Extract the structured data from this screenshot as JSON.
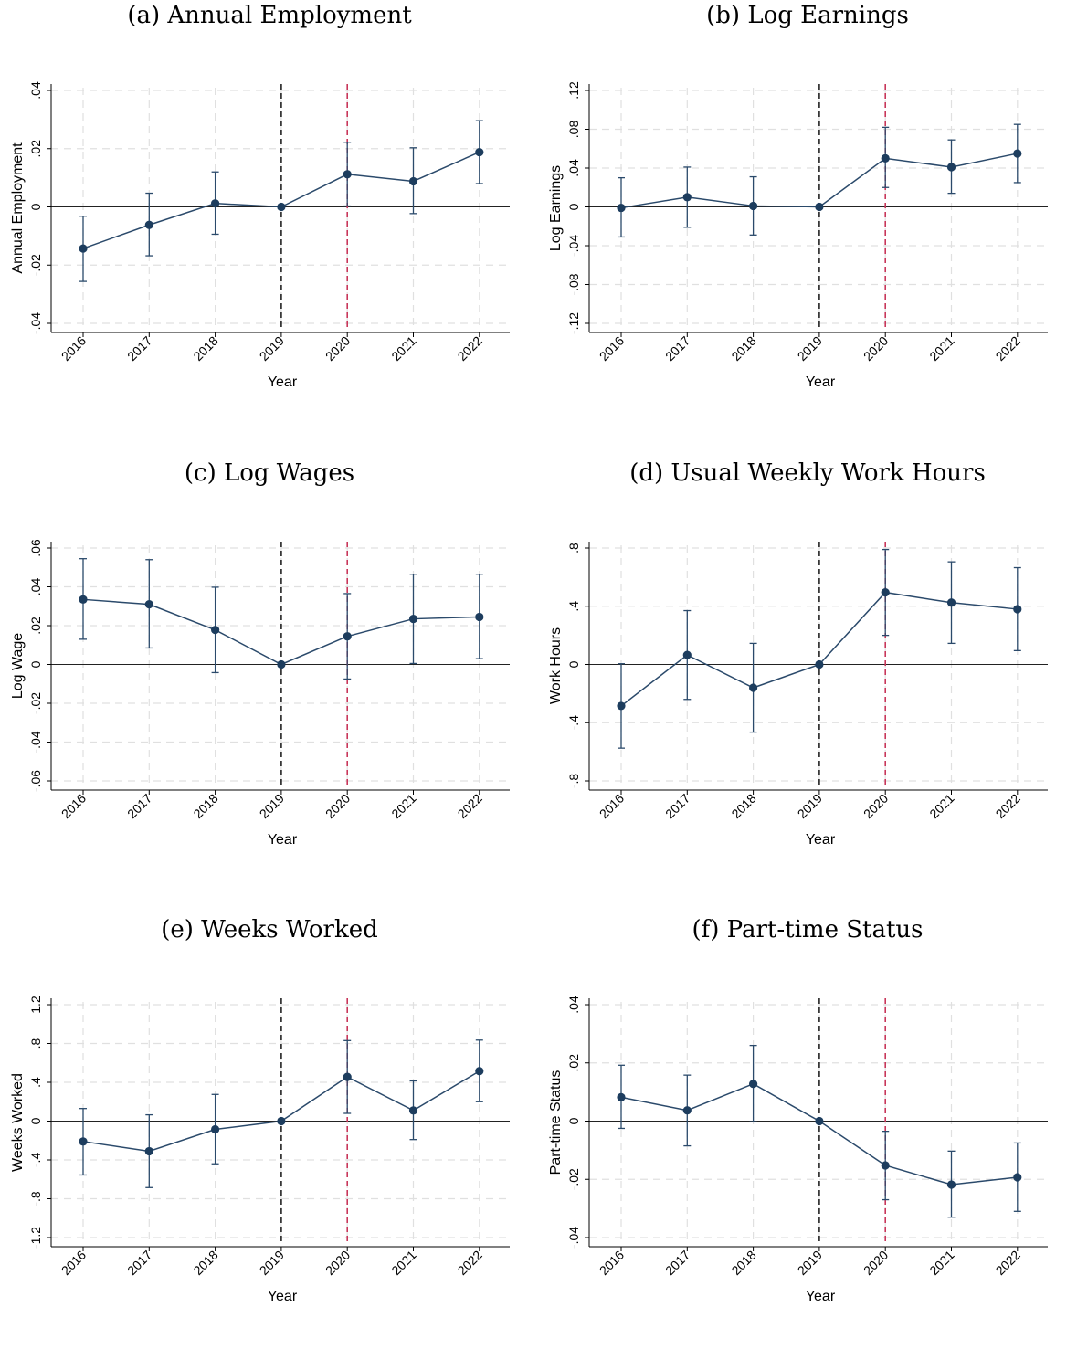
{
  "colors": {
    "series": "#1d3d5e",
    "reference_black": "#222222",
    "reference_red": "#c8375a"
  },
  "chart_data": [
    {
      "type": "line",
      "title": "(a) Annual Employment",
      "xlabel": "Year",
      "ylabel": "Annual Employment",
      "x": [
        "2016",
        "2017",
        "2018",
        "2019",
        "2020",
        "2021",
        "2022"
      ],
      "values": [
        -0.0143,
        -0.0062,
        0.0012,
        0.0,
        0.0112,
        0.0088,
        0.0188
      ],
      "ci_lower": [
        -0.0256,
        -0.0168,
        -0.0094,
        0.0,
        0.0003,
        -0.0023,
        0.008
      ],
      "ci_upper": [
        -0.0032,
        0.0047,
        0.012,
        0.0,
        0.0222,
        0.0203,
        0.0296
      ],
      "ylim": [
        -0.04,
        0.04
      ],
      "yticks": [
        -0.04,
        -0.02,
        0,
        0.02,
        0.04
      ],
      "ytick_labels": [
        "-.04",
        "-.02",
        "0",
        ".02",
        ".04"
      ],
      "reference_lines": [
        "2019",
        "2020"
      ],
      "grid": true
    },
    {
      "type": "line",
      "title": "(b) Log Earnings",
      "xlabel": "Year",
      "ylabel": "Log Earnings",
      "x": [
        "2016",
        "2017",
        "2018",
        "2019",
        "2020",
        "2021",
        "2022"
      ],
      "values": [
        -0.001,
        0.01,
        0.001,
        0.0,
        0.05,
        0.041,
        0.055
      ],
      "ci_lower": [
        -0.031,
        -0.021,
        -0.029,
        0.0,
        0.02,
        0.014,
        0.025
      ],
      "ci_upper": [
        0.03,
        0.041,
        0.031,
        0.0,
        0.082,
        0.069,
        0.085
      ],
      "ylim": [
        -0.12,
        0.12
      ],
      "yticks": [
        -0.12,
        -0.08,
        -0.04,
        0,
        0.04,
        0.08,
        0.12
      ],
      "ytick_labels": [
        "-.12",
        "-.08",
        "-.04",
        "0",
        ".04",
        ".08",
        ".12"
      ],
      "reference_lines": [
        "2019",
        "2020"
      ],
      "grid": true
    },
    {
      "type": "line",
      "title": "(c) Log Wages",
      "xlabel": "Year",
      "ylabel": "Log Wage",
      "x": [
        "2016",
        "2017",
        "2018",
        "2019",
        "2020",
        "2021",
        "2022"
      ],
      "values": [
        0.0335,
        0.031,
        0.0178,
        0.0,
        0.0145,
        0.0235,
        0.0245
      ],
      "ci_lower": [
        0.013,
        0.0085,
        -0.0042,
        0.0,
        -0.0075,
        0.0005,
        0.003
      ],
      "ci_upper": [
        0.0545,
        0.054,
        0.0398,
        0.0,
        0.0365,
        0.0465,
        0.0465
      ],
      "ylim": [
        -0.06,
        0.06
      ],
      "yticks": [
        -0.06,
        -0.04,
        -0.02,
        0,
        0.02,
        0.04,
        0.06
      ],
      "ytick_labels": [
        "-.06",
        "-.04",
        "-.02",
        "0",
        ".02",
        ".04",
        ".06"
      ],
      "reference_lines": [
        "2019",
        "2020"
      ],
      "grid": true
    },
    {
      "type": "line",
      "title": "(d) Usual Weekly Work Hours",
      "xlabel": "Year",
      "ylabel": "Work Hours",
      "x": [
        "2016",
        "2017",
        "2018",
        "2019",
        "2020",
        "2021",
        "2022"
      ],
      "values": [
        -0.285,
        0.065,
        -0.16,
        0.0,
        0.495,
        0.425,
        0.38
      ],
      "ci_lower": [
        -0.575,
        -0.24,
        -0.465,
        0.0,
        0.2,
        0.145,
        0.095
      ],
      "ci_upper": [
        0.005,
        0.37,
        0.145,
        0.0,
        0.79,
        0.705,
        0.665
      ],
      "ylim": [
        -0.8,
        0.8
      ],
      "yticks": [
        -0.8,
        -0.4,
        0,
        0.4,
        0.8
      ],
      "ytick_labels": [
        "-.8",
        "-.4",
        "0",
        ".4",
        ".8"
      ],
      "reference_lines": [
        "2019",
        "2020"
      ],
      "grid": true
    },
    {
      "type": "line",
      "title": "(e) Weeks Worked",
      "xlabel": "Year",
      "ylabel": "Weeks Worked",
      "x": [
        "2016",
        "2017",
        "2018",
        "2019",
        "2020",
        "2021",
        "2022"
      ],
      "values": [
        -0.21,
        -0.31,
        -0.085,
        0.0,
        0.455,
        0.11,
        0.515
      ],
      "ci_lower": [
        -0.555,
        -0.685,
        -0.44,
        0.0,
        0.08,
        -0.19,
        0.2
      ],
      "ci_upper": [
        0.13,
        0.065,
        0.275,
        0.0,
        0.83,
        0.415,
        0.835
      ],
      "ylim": [
        -1.2,
        1.2
      ],
      "yticks": [
        -1.2,
        -0.8,
        -0.4,
        0,
        0.4,
        0.8,
        1.2
      ],
      "ytick_labels": [
        "-1.2",
        "-.8",
        "-.4",
        "0",
        ".4",
        ".8",
        "1.2"
      ],
      "reference_lines": [
        "2019",
        "2020"
      ],
      "grid": true
    },
    {
      "type": "line",
      "title": "(f) Part-time Status",
      "xlabel": "Year",
      "ylabel": "Part-time Status",
      "x": [
        "2016",
        "2017",
        "2018",
        "2019",
        "2020",
        "2021",
        "2022"
      ],
      "values": [
        0.0082,
        0.0037,
        0.0128,
        0.0,
        -0.0152,
        -0.0218,
        -0.0193
      ],
      "ci_lower": [
        -0.0025,
        -0.0085,
        -0.0002,
        0.0,
        -0.027,
        -0.033,
        -0.031
      ],
      "ci_upper": [
        0.0192,
        0.0158,
        0.026,
        0.0,
        -0.0035,
        -0.0103,
        -0.0075
      ],
      "ylim": [
        -0.04,
        0.04
      ],
      "yticks": [
        -0.04,
        -0.02,
        0,
        0.02,
        0.04
      ],
      "ytick_labels": [
        "-.04",
        "-.02",
        "0",
        ".02",
        ".04"
      ],
      "reference_lines": [
        "2019",
        "2020"
      ],
      "grid": true
    }
  ]
}
